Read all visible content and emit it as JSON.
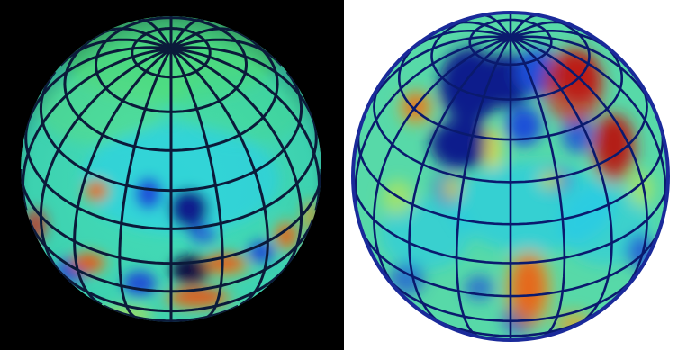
{
  "figure": {
    "panels": [
      {
        "id": "left",
        "background": "#000000",
        "base_color": "#3fd9b5",
        "grid_color": "#0b1a3a",
        "north_cap_color": "#4fe07a"
      },
      {
        "id": "right",
        "background": "#ffffff",
        "base_color": "#57d9a8",
        "grid_color": "#0a1a6e",
        "rim_color": "#1a2a9a"
      }
    ],
    "colormap": [
      "#0d1b8c",
      "#1f4fd8",
      "#22c9ef",
      "#5fe0a0",
      "#c8e84a",
      "#f0a020",
      "#d8261a",
      "#7a0c10"
    ]
  }
}
